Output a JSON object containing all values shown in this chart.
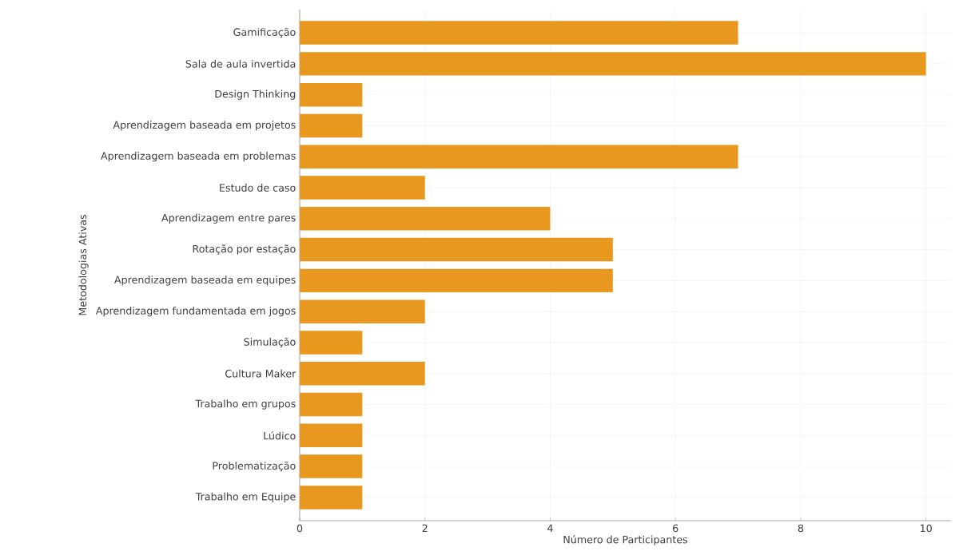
{
  "chart_data": {
    "type": "bar",
    "orientation": "horizontal",
    "xlabel": "Número de Participantes",
    "ylabel": "Metodologias Ativas",
    "categories": [
      "Gamificação",
      "Sala de aula invertida",
      "Design Thinking",
      "Aprendizagem baseada em projetos",
      "Aprendizagem baseada em problemas",
      "Estudo de caso",
      "Aprendizagem entre pares",
      "Rotação por estação",
      "Aprendizagem baseada em equipes",
      "Aprendizagem fundamentada em jogos",
      "Simulação",
      "Cultura Maker",
      "Trabalho em grupos",
      "Lúdico",
      "Problematização",
      "Trabalho em Equipe"
    ],
    "values": [
      7,
      10,
      1,
      1,
      7,
      2,
      4,
      5,
      5,
      2,
      1,
      2,
      1,
      1,
      1,
      1
    ],
    "color": "#e8981e",
    "xlim": [
      0,
      10.4
    ],
    "xticks": [
      0,
      2,
      4,
      6,
      8,
      10
    ],
    "grid": true
  }
}
